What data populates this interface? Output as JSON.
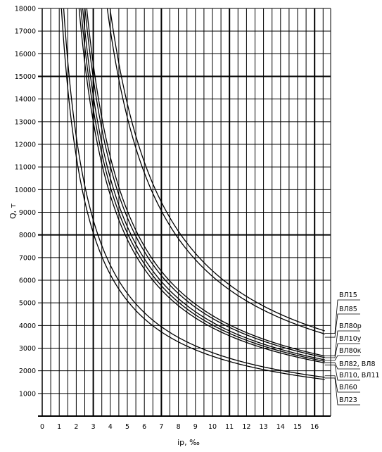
{
  "chart_data": {
    "type": "line",
    "ylabel": "Q, т",
    "xlabel": "iр, ‰",
    "xlim": [
      0,
      17
    ],
    "ylim": [
      0,
      18000
    ],
    "x_ticks": [
      "0",
      "1",
      "2",
      "3",
      "4",
      "5",
      "6",
      "7",
      "8",
      "9",
      "10",
      "11",
      "12",
      "13",
      "14",
      "15",
      "16"
    ],
    "y_ticks": [
      "1000",
      "2000",
      "3000",
      "4000",
      "5000",
      "6000",
      "7000",
      "8000",
      "9000",
      "10000",
      "11000",
      "12000",
      "13000",
      "14000",
      "15000",
      "16000",
      "17000",
      "18000"
    ],
    "grid": true,
    "series": [
      {
        "name": "ВЛ15",
        "k": 60000,
        "a": 0.65,
        "end_y": 3650
      },
      {
        "name": "ВЛ85",
        "k": 58000,
        "a": 0.6,
        "end_y": 3480
      },
      {
        "name": "ВЛ80р",
        "k": 43500,
        "a": 0.2,
        "end_y": 2660
      },
      {
        "name": "ВЛ10у",
        "k": 42500,
        "a": 0.15,
        "end_y": 2580
      },
      {
        "name": "ВЛ80к",
        "k": 41000,
        "a": 0.1,
        "end_y": 2460
      },
      {
        "name": "ВЛ82, ВЛ8",
        "k": 40000,
        "a": 0.05,
        "end_y": 2360
      },
      {
        "name": "ВЛ10, ВЛ11",
        "k": 39000,
        "a": 0.0,
        "end_y": 2260
      },
      {
        "name": "ВЛ60",
        "k": 29000,
        "a": -0.35,
        "end_y": 1780
      },
      {
        "name": "ВЛ23",
        "k": 27500,
        "a": -0.4,
        "end_y": 1680
      }
    ]
  }
}
